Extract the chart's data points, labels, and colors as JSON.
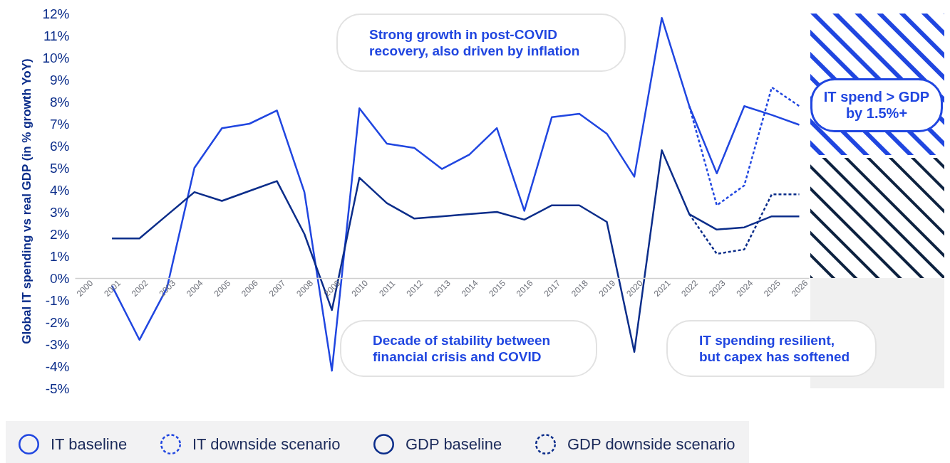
{
  "chart_data": {
    "type": "line",
    "ylabel": "Global IT spending vs real GDP (in % growth YoY)",
    "categories": [
      "2000",
      "2001",
      "2002",
      "2003",
      "2004",
      "2005",
      "2006",
      "2007",
      "2008",
      "2009",
      "2010",
      "2011",
      "2012",
      "2013",
      "2014",
      "2015",
      "2016",
      "2017",
      "2018",
      "2019",
      "2020",
      "2021",
      "2022",
      "2023",
      "2024",
      "2025",
      "2026"
    ],
    "series": [
      {
        "name": "IT baseline",
        "color": "#2046e0",
        "line_style": "solid",
        "values": [
          null,
          -0.35,
          -2.8,
          -0.45,
          5.0,
          6.8,
          7.0,
          7.6,
          3.9,
          -4.2,
          7.7,
          6.1,
          5.9,
          4.95,
          5.6,
          6.8,
          3.05,
          7.3,
          7.45,
          6.55,
          4.6,
          11.8,
          7.8,
          4.75,
          7.8,
          7.4,
          6.95
        ]
      },
      {
        "name": "IT downside scenario",
        "color": "#2046e0",
        "line_style": "dashed",
        "values": [
          null,
          null,
          null,
          null,
          null,
          null,
          null,
          null,
          null,
          null,
          null,
          null,
          null,
          null,
          null,
          null,
          null,
          null,
          null,
          null,
          null,
          null,
          7.8,
          3.3,
          4.2,
          8.65,
          7.8
        ]
      },
      {
        "name": "GDP baseline",
        "color": "#0b2d8a",
        "line_style": "solid",
        "values": [
          null,
          1.8,
          1.8,
          2.85,
          3.9,
          3.5,
          3.95,
          4.4,
          2.0,
          -1.45,
          4.55,
          3.4,
          2.7,
          2.8,
          2.9,
          3.0,
          2.65,
          3.3,
          3.3,
          2.55,
          -3.35,
          5.8,
          2.9,
          2.2,
          2.3,
          2.8,
          2.8
        ]
      },
      {
        "name": "GDP downside scenario",
        "color": "#0b2d8a",
        "line_style": "dashed",
        "values": [
          null,
          null,
          null,
          null,
          null,
          null,
          null,
          null,
          null,
          null,
          null,
          null,
          null,
          null,
          null,
          null,
          null,
          null,
          null,
          null,
          null,
          null,
          2.9,
          1.1,
          1.3,
          3.8,
          3.8
        ]
      }
    ],
    "ylim": [
      -5,
      12
    ],
    "yticks": [
      {
        "value": -5,
        "label": "-5%"
      },
      {
        "value": -4,
        "label": "-4%"
      },
      {
        "value": -3,
        "label": "-3%"
      },
      {
        "value": -2,
        "label": "-2%"
      },
      {
        "value": -1,
        "label": "-1%"
      },
      {
        "value": 0,
        "label": "0%"
      },
      {
        "value": 1,
        "label": "1%"
      },
      {
        "value": 2,
        "label": "2%"
      },
      {
        "value": 3,
        "label": "3%"
      },
      {
        "value": 4,
        "label": "4%"
      },
      {
        "value": 5,
        "label": "5%"
      },
      {
        "value": 6,
        "label": "6%"
      },
      {
        "value": 7,
        "label": "7%"
      },
      {
        "value": 8,
        "label": "8%"
      },
      {
        "value": 9,
        "label": "9%"
      },
      {
        "value": 10,
        "label": "10%"
      },
      {
        "value": 11,
        "label": "11%"
      },
      {
        "value": 12,
        "label": "12%"
      }
    ],
    "grid": false,
    "legend": "bottom",
    "annotations": [
      "Strong growth in post-COVID\nrecovery, also driven by inflation",
      "Decade of stability between\nfinancial crisis and COVID",
      "IT spending resilient,\nbut capex has softened",
      "IT spend > GDP\nby 1.5%+"
    ]
  }
}
